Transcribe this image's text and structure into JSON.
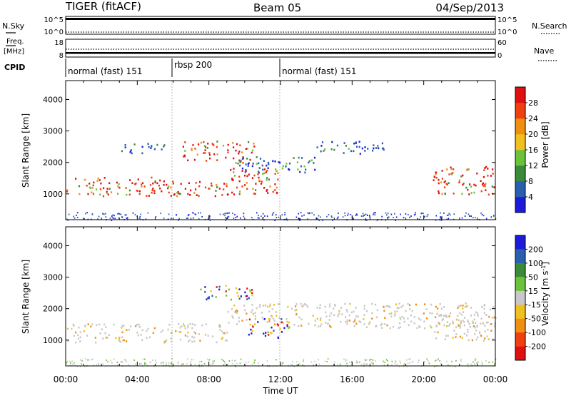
{
  "header": {
    "station": "TIGER (fitACF)",
    "beam": "Beam 05",
    "date": "04/Sep/2013"
  },
  "top_panels": {
    "nsky": {
      "label": "N.Sky",
      "tick_top": "10^5",
      "tick_bottom": "10^0"
    },
    "nsearch": {
      "label": "N.Search",
      "tick_top": "10^5",
      "tick_bottom": "10^0"
    },
    "freq": {
      "label_line1": "Freq.",
      "label_line2": "[MHz]",
      "tick_top": "18",
      "tick_bottom": "8"
    },
    "nave": {
      "label": "Nave",
      "tick_top": "60",
      "tick_bottom": "0"
    },
    "cpid": {
      "label": "CPID",
      "segments": [
        {
          "label": "normal (fast) 151",
          "start_hour": 0,
          "end_hour": 6
        },
        {
          "label": "rbsp 200",
          "start_hour": 6,
          "end_hour": 12
        },
        {
          "label": "normal (fast) 151",
          "start_hour": 12,
          "end_hour": 24
        }
      ]
    }
  },
  "chart_data": [
    {
      "type": "heatmap",
      "panel": "power",
      "ylabel": "Slant Range [km]",
      "ylim": [
        180,
        4600
      ],
      "yticks": [
        1000,
        2000,
        3000,
        4000
      ],
      "xlim": [
        0,
        24
      ],
      "colorbar": {
        "label": "Power [dB]",
        "ticks": [
          "4",
          "8",
          "12",
          "16",
          "20",
          "24",
          "28"
        ],
        "colors": [
          "#1c1cd8",
          "#2a5fb0",
          "#3a8a3a",
          "#6cc23a",
          "#f0c020",
          "#f09010",
          "#f04010",
          "#e01010"
        ]
      },
      "scatter_bands": [
        {
          "start_hour": 0.0,
          "end_hour": 6.0,
          "range_low": 950,
          "range_high": 1550,
          "dominant": "high"
        },
        {
          "start_hour": 3.0,
          "end_hour": 5.5,
          "range_low": 2300,
          "range_high": 2650,
          "dominant": "low"
        },
        {
          "start_hour": 6.0,
          "end_hour": 9.0,
          "range_low": 950,
          "range_high": 1450,
          "dominant": "high"
        },
        {
          "start_hour": 6.5,
          "end_hour": 10.5,
          "range_low": 2000,
          "range_high": 2700,
          "dominant": "high"
        },
        {
          "start_hour": 9.0,
          "end_hour": 12.0,
          "range_low": 1000,
          "range_high": 1900,
          "dominant": "high"
        },
        {
          "start_hour": 9.5,
          "end_hour": 14.0,
          "range_low": 1700,
          "range_high": 2200,
          "dominant": "low"
        },
        {
          "start_hour": 14.0,
          "end_hour": 18.0,
          "range_low": 2300,
          "range_high": 2700,
          "dominant": "low"
        },
        {
          "start_hour": 20.5,
          "end_hour": 24.0,
          "range_low": 1000,
          "range_high": 1900,
          "dominant": "high"
        }
      ]
    },
    {
      "type": "heatmap",
      "panel": "velocity",
      "ylabel": "Slant Range [km]",
      "ylim": [
        180,
        4600
      ],
      "yticks": [
        1000,
        2000,
        3000,
        4000
      ],
      "xlim": [
        0,
        24
      ],
      "xticks": [
        "00:00",
        "04:00",
        "08:00",
        "12:00",
        "16:00",
        "20:00",
        "00:00"
      ],
      "xlabel": "Time UT",
      "colorbar": {
        "label": "Velocity [m s^-1]",
        "ticks": [
          "200",
          "100",
          "50",
          "15",
          "-15",
          "-50",
          "-100",
          "-200"
        ],
        "colors": [
          "#1c1cd8",
          "#2a5fb0",
          "#3a8a3a",
          "#6cc23a",
          "#c8c8c8",
          "#f0c020",
          "#f09010",
          "#f04010",
          "#e01010"
        ]
      },
      "scatter_bands": [
        {
          "start_hour": 0.0,
          "end_hour": 9.0,
          "range_low": 950,
          "range_high": 1550,
          "dominant": "ground"
        },
        {
          "start_hour": 9.0,
          "end_hour": 24.0,
          "range_low": 1400,
          "range_high": 2200,
          "dominant": "ground"
        },
        {
          "start_hour": 7.5,
          "end_hour": 10.5,
          "range_low": 2300,
          "range_high": 2800,
          "dominant": "mixed"
        },
        {
          "start_hour": 10.0,
          "end_hour": 12.5,
          "range_low": 1100,
          "range_high": 1700,
          "dominant": "mixed"
        },
        {
          "start_hour": 20.5,
          "end_hour": 24.0,
          "range_low": 1000,
          "range_high": 1900,
          "dominant": "ground"
        }
      ]
    }
  ]
}
